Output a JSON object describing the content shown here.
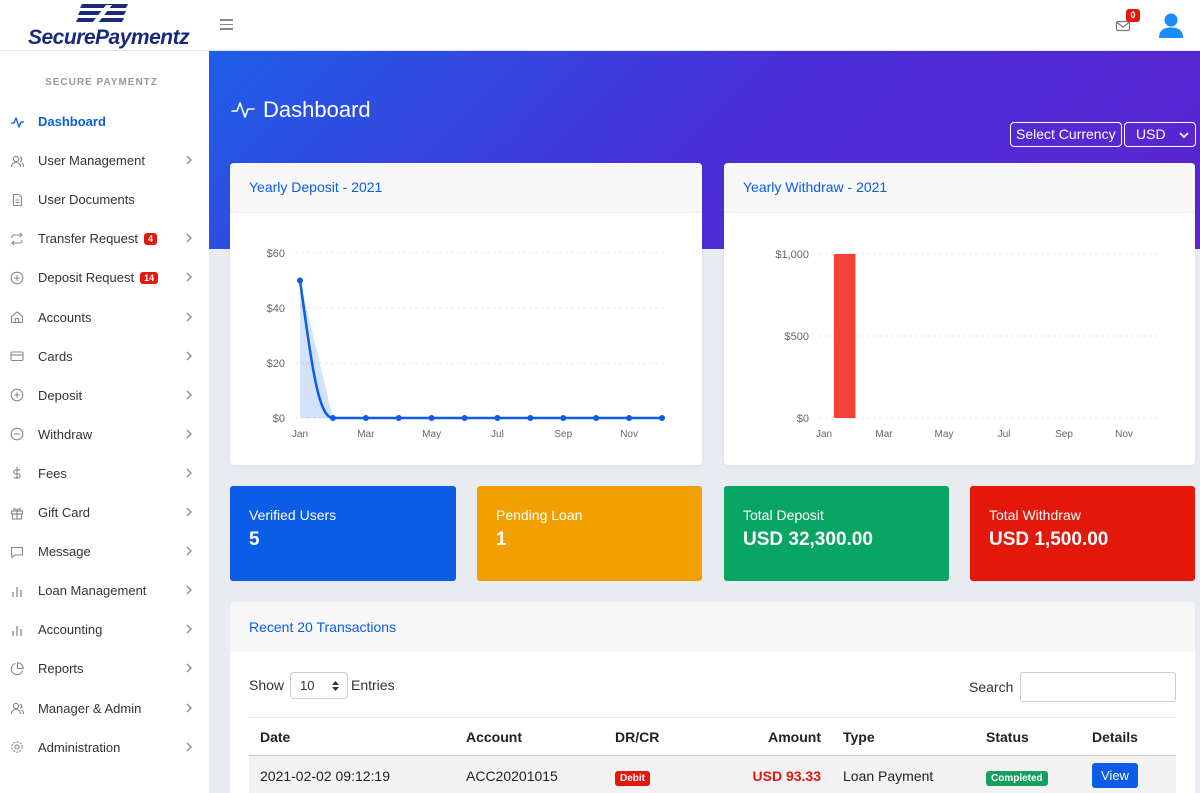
{
  "brand": {
    "name": "SecurePaymentz",
    "color": "#1a2a7a"
  },
  "topbar": {
    "mail_count": "0"
  },
  "sidebar": {
    "heading": "SECURE PAYMENTZ",
    "items": [
      {
        "label": "Dashboard",
        "icon": "activity-icon",
        "active": true,
        "badge": "",
        "chevron": false
      },
      {
        "label": "User Management",
        "icon": "users-icon",
        "badge": "",
        "chevron": true
      },
      {
        "label": "User Documents",
        "icon": "file-icon",
        "badge": "",
        "chevron": false
      },
      {
        "label": "Transfer Request",
        "icon": "repeat-icon",
        "badge": "4",
        "chevron": true
      },
      {
        "label": "Deposit Request",
        "icon": "plus-circle-icon",
        "badge": "14",
        "chevron": true
      },
      {
        "label": "Accounts",
        "icon": "home-icon",
        "badge": "",
        "chevron": true
      },
      {
        "label": "Cards",
        "icon": "credit-card-icon",
        "badge": "",
        "chevron": true
      },
      {
        "label": "Deposit",
        "icon": "plus-circle-icon",
        "badge": "",
        "chevron": true
      },
      {
        "label": "Withdraw",
        "icon": "minus-circle-icon",
        "badge": "",
        "chevron": true
      },
      {
        "label": "Fees",
        "icon": "dollar-icon",
        "badge": "",
        "chevron": true
      },
      {
        "label": "Gift Card",
        "icon": "gift-icon",
        "badge": "",
        "chevron": true
      },
      {
        "label": "Message",
        "icon": "message-icon",
        "badge": "",
        "chevron": true
      },
      {
        "label": "Loan Management",
        "icon": "bar-chart-icon",
        "badge": "",
        "chevron": true
      },
      {
        "label": "Accounting",
        "icon": "bar-chart-icon",
        "badge": "",
        "chevron": true
      },
      {
        "label": "Reports",
        "icon": "pie-chart-icon",
        "badge": "",
        "chevron": true
      },
      {
        "label": "Manager & Admin",
        "icon": "users-icon",
        "badge": "",
        "chevron": true
      },
      {
        "label": "Administration",
        "icon": "settings-icon",
        "badge": "",
        "chevron": true
      }
    ]
  },
  "header": {
    "title": "Dashboard",
    "currency_button": "Select Currency",
    "currency_value": "USD",
    "gradient": [
      "#1e5ee8",
      "#5b24d0"
    ]
  },
  "cards": {
    "deposit_title": "Yearly Deposit - 2021",
    "withdraw_title": "Yearly Withdraw - 2021"
  },
  "chart_data": [
    {
      "type": "line",
      "title": "Yearly Deposit - 2021",
      "x": [
        "Jan",
        "Feb",
        "Mar",
        "Apr",
        "May",
        "Jun",
        "Jul",
        "Aug",
        "Sep",
        "Oct",
        "Nov",
        "Dec"
      ],
      "tick_labels": [
        "Jan",
        "Mar",
        "May",
        "Jul",
        "Sep",
        "Nov"
      ],
      "yticks": [
        "$0",
        "$20",
        "$40",
        "$60"
      ],
      "ylim": [
        0,
        60
      ],
      "values": [
        50,
        0,
        0,
        0,
        0,
        0,
        0,
        0,
        0,
        0,
        0,
        0
      ],
      "color": "#0b5ce6",
      "grid": true
    },
    {
      "type": "bar",
      "title": "Yearly Withdraw - 2021",
      "x": [
        "Jan",
        "Feb",
        "Mar",
        "Apr",
        "May",
        "Jun",
        "Jul",
        "Aug",
        "Sep",
        "Oct",
        "Nov",
        "Dec"
      ],
      "tick_labels": [
        "Jan",
        "Mar",
        "May",
        "Jul",
        "Sep",
        "Nov"
      ],
      "yticks": [
        "$0",
        "$500",
        "$1,000"
      ],
      "ylim": [
        0,
        1000
      ],
      "values": [
        1000,
        0,
        0,
        0,
        0,
        0,
        0,
        0,
        0,
        0,
        0,
        0
      ],
      "color": "#f3413a",
      "grid": true
    }
  ],
  "stats": [
    {
      "label": "Verified Users",
      "value": "5",
      "color": "#0b5ce6"
    },
    {
      "label": "Pending Loan",
      "value": "1",
      "color": "#f2a001"
    },
    {
      "label": "Total Deposit",
      "value": "USD 32,300.00",
      "color": "#07a563"
    },
    {
      "label": "Total Withdraw",
      "value": "USD 1,500.00",
      "color": "#e3170a"
    }
  ],
  "transactions": {
    "title": "Recent 20 Transactions",
    "show_label": "Show",
    "entries_value": "10",
    "entries_label": "Entries",
    "search_label": "Search",
    "columns": [
      "Date",
      "Account",
      "DR/CR",
      "Amount",
      "Type",
      "Status",
      "Details"
    ],
    "rows": [
      {
        "date": "2021-02-02 09:12:19",
        "account": "ACC20201015",
        "drcr": "Debit",
        "amount": "USD 93.33",
        "type": "Loan Payment",
        "status": "Completed",
        "details": "View"
      }
    ]
  }
}
